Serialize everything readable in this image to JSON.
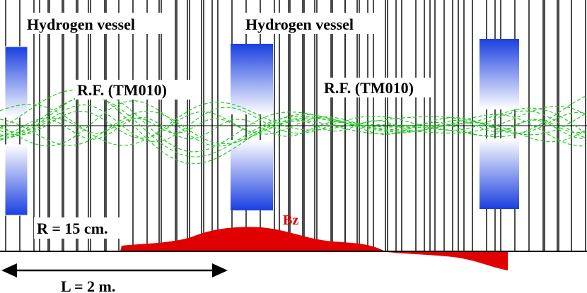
{
  "labels": {
    "vessel_left": "Hydrogen vessel",
    "vessel_center": "Hydrogen vessel",
    "rf_left": "R.F. (TM010)",
    "rf_right": "R.F. (TM010)",
    "radius": "R = 15 cm.",
    "field": "Bz",
    "length": "L = 2 m."
  },
  "colors": {
    "coil_dark": "#1a3fe0",
    "coil_light": "#ffffff",
    "field_profile": "#e00000",
    "beam_tracks": "#22cc22",
    "lines": "#000000",
    "field_label": "#e00000"
  }
}
